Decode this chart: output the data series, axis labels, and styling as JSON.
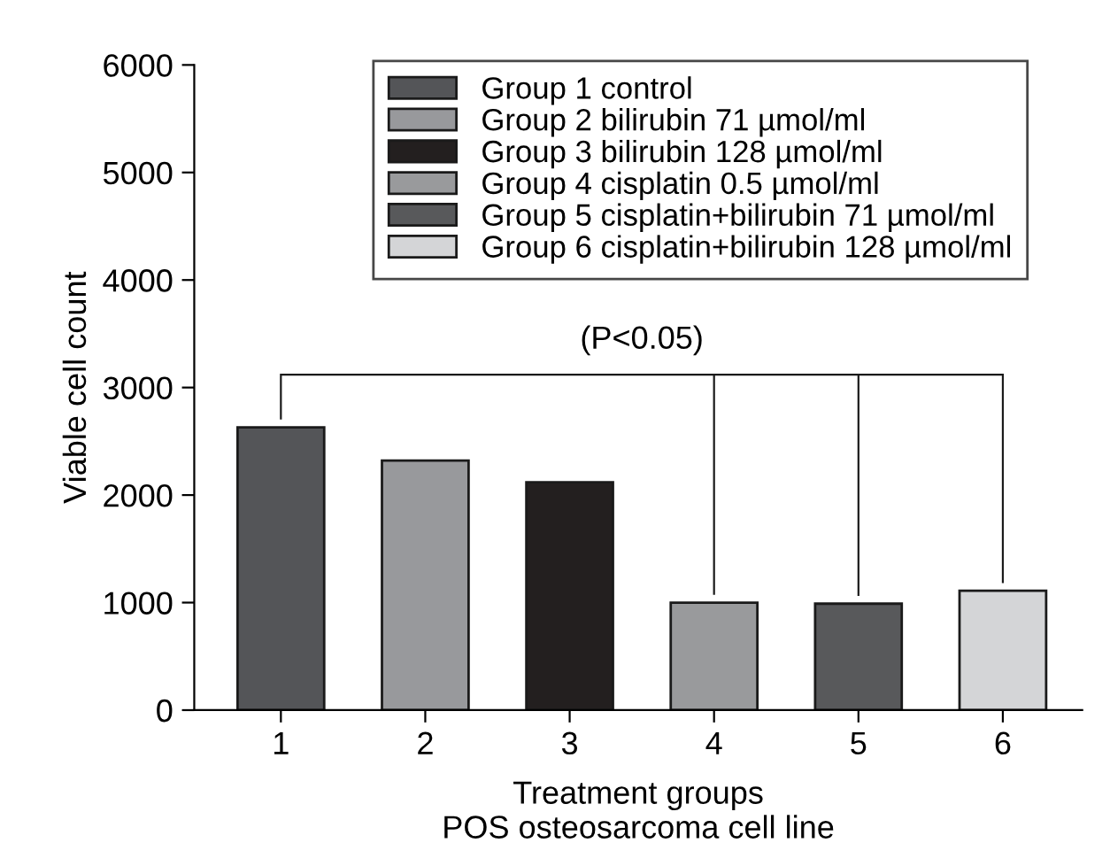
{
  "chart_data": {
    "type": "bar",
    "xlabel": "Treatment groups\nPOS osteosarcoma cell line",
    "ylabel": "Viable cell count",
    "categories": [
      "1",
      "2",
      "3",
      "4",
      "5",
      "6"
    ],
    "series": [
      {
        "name": "Group 1 control",
        "color": "#545558",
        "values": [
          2630,
          null,
          null,
          null,
          null,
          null
        ]
      },
      {
        "name": "Group 2 bilirubin 71 µmol/ml",
        "color": "#98999c",
        "values": [
          null,
          2320,
          null,
          null,
          null,
          null
        ]
      },
      {
        "name": "Group 3 bilirubin 128 µmol/ml",
        "color": "#231f1f",
        "values": [
          null,
          null,
          2120,
          null,
          null,
          null
        ]
      },
      {
        "name": "Group 4 cisplatin 0.5 µmol/ml",
        "color": "#999a9c",
        "values": [
          null,
          null,
          null,
          1000,
          null,
          null
        ]
      },
      {
        "name": "Group 5 cisplatin+bilirubin 71 µmol/ml",
        "color": "#58595b",
        "values": [
          null,
          null,
          null,
          null,
          990,
          null
        ]
      },
      {
        "name": "Group 6 cisplatin+bilirubin 128 µmol/ml",
        "color": "#d4d5d7",
        "values": [
          null,
          null,
          null,
          null,
          null,
          1110
        ]
      }
    ],
    "ylim": [
      0,
      6000
    ],
    "yticks": [
      0,
      1000,
      2000,
      3000,
      4000,
      5000,
      6000
    ],
    "annotations": [
      "(P<0.05)"
    ],
    "legend": "top",
    "grid": false
  }
}
